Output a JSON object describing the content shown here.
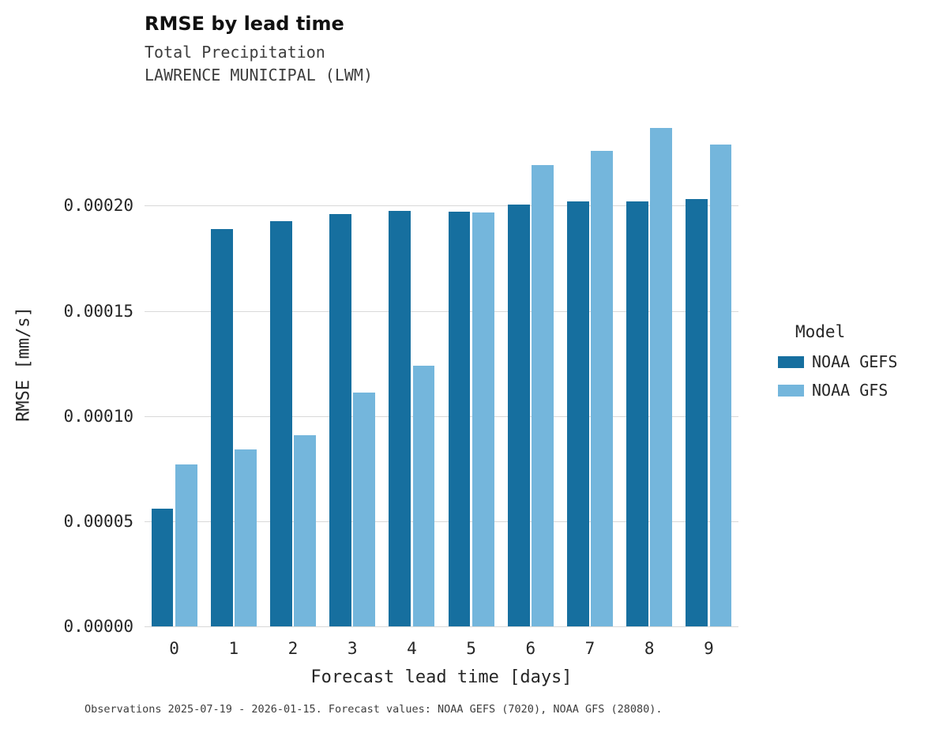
{
  "chart_data": {
    "type": "bar",
    "title": "RMSE by lead time",
    "subtitle1": "Total Precipitation",
    "subtitle2": "LAWRENCE MUNICIPAL (LWM)",
    "xlabel": "Forecast lead time [days]",
    "ylabel": "RMSE [mm/s]",
    "categories": [
      "0",
      "1",
      "2",
      "3",
      "4",
      "5",
      "6",
      "7",
      "8",
      "9"
    ],
    "series": [
      {
        "name": "NOAA GEFS",
        "color": "#166f9f",
        "values": [
          5.6e-05,
          0.000189,
          0.0001925,
          0.0001962,
          0.0001977,
          0.0001973,
          0.0002005,
          0.000202,
          0.0002022,
          0.0002032
        ]
      },
      {
        "name": "NOAA GFS",
        "color": "#74b6dc",
        "values": [
          7.7e-05,
          8.4e-05,
          9.1e-05,
          0.000111,
          0.000124,
          0.0001968,
          0.0002195,
          0.000226,
          0.000237,
          0.000229
        ]
      }
    ],
    "ylim": [
      0,
      0.000249
    ],
    "yticks": [
      {
        "value": 0.0,
        "label": "0.00000"
      },
      {
        "value": 5e-05,
        "label": "0.00005"
      },
      {
        "value": 0.0001,
        "label": "0.00010"
      },
      {
        "value": 0.00015,
        "label": "0.00015"
      },
      {
        "value": 0.0002,
        "label": "0.00020"
      }
    ],
    "grid": "horizontal",
    "legend_title": "Model",
    "legend_position": "right",
    "caption": "Observations 2025-07-19 - 2026-01-15. Forecast values: NOAA GEFS (7020), NOAA GFS (28080)."
  }
}
